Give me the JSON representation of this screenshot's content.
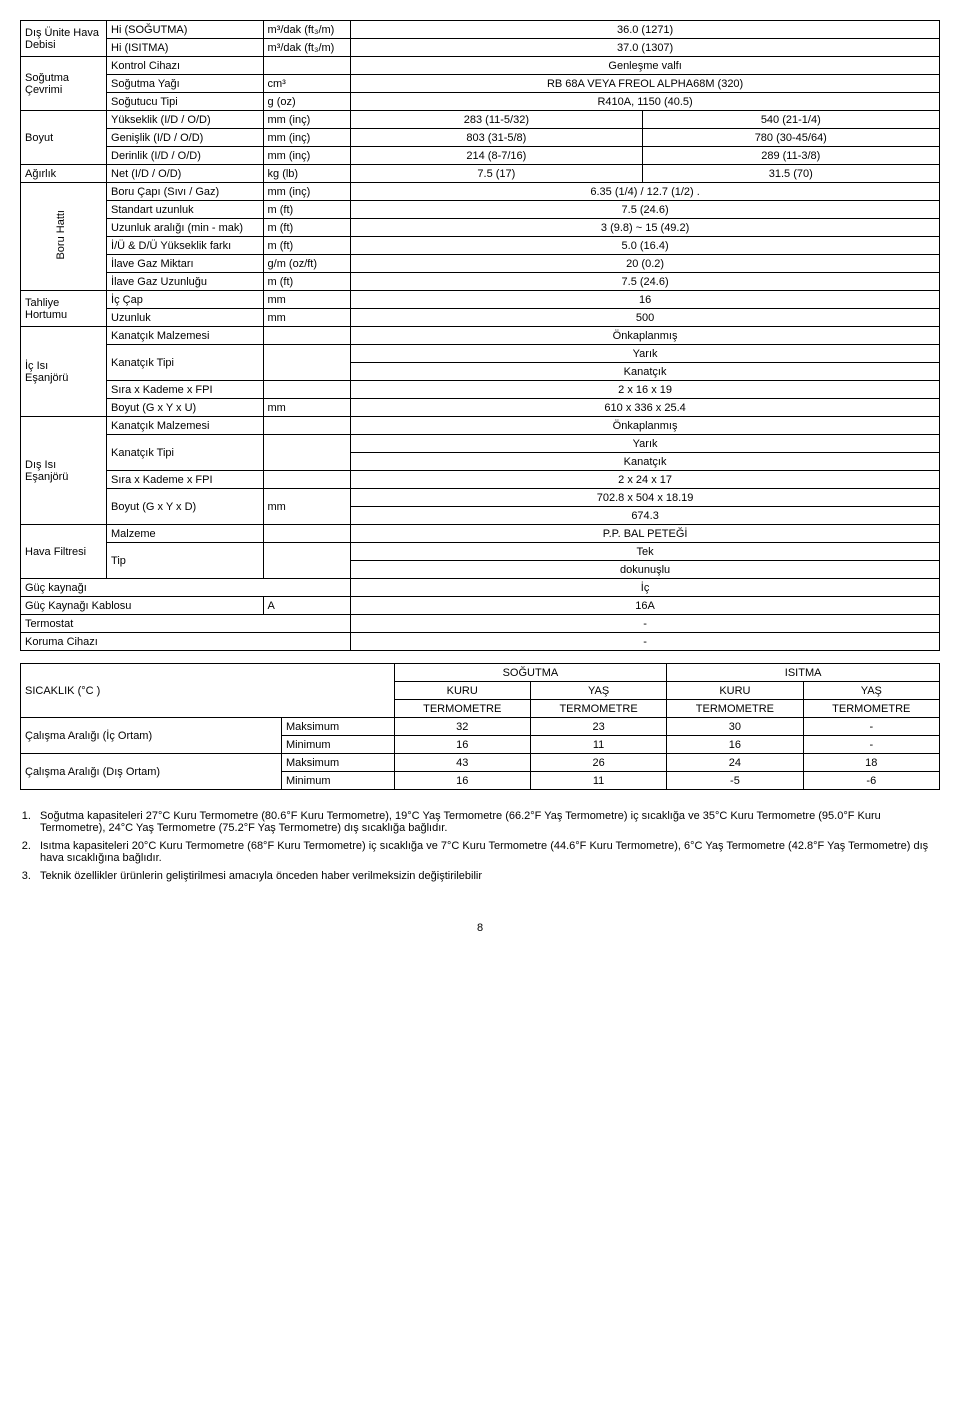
{
  "rows": [
    {
      "c1": "Dış Ünite Hava",
      "c2": "Hi (SOĞUTMA)",
      "c3": "m³/dak (ft₃/m)",
      "c45": "36.0 (1271)",
      "rs1": 2
    },
    {
      "c2": "Hi (ISITMA)",
      "c3": "m³/dak (ft₃/m)",
      "c45": "37.0 (1307)"
    },
    {
      "c1_pre": "Debisi\n",
      "c1": "Soğutma",
      "c2": "Kontrol Cihazı",
      "c3": "",
      "c45": "Genleşme valfı",
      "rs1": 3
    },
    {
      "c1_cont": "Çevrimi",
      "c2": "Soğutma Yağı",
      "c3": "cm³",
      "c45": "RB 68A VEYA FREOL ALPHA68M (320)"
    },
    {
      "c2": "Soğutucu Tipi",
      "c3": "g (oz)",
      "c45": "R410A, 1150 (40.5)"
    },
    {
      "c1": "Boyut",
      "c2": "Yükseklik (I/D / O/D)",
      "c3": "mm (inç)",
      "c4": "283 (11-5/32)",
      "c5": "540 (21-1/4)",
      "rs1": 3
    },
    {
      "c2": "Genişlik  (I/D / O/D)",
      "c3": "mm (inç)",
      "c4": "803 (31-5/8)",
      "c5": "780 (30-45/64)"
    },
    {
      "c2": "Derinlik (I/D / O/D)",
      "c3": "mm (inç)",
      "c4": "214 (8-7/16)",
      "c5": "289 (11-3/8)"
    },
    {
      "c1": "Ağırlık",
      "c2": "Net (I/D / O/D)",
      "c3": "kg (lb)",
      "c4": "7.5 (17)",
      "c5": "31.5 (70)"
    }
  ],
  "boru": {
    "label": "Boru Hattı",
    "rows": [
      {
        "c2": "Boru Çapı (Sıvı / Gaz)",
        "c3": "mm (inç)",
        "c45": "6.35 (1/4) / 12.7 (1/2) ."
      },
      {
        "c2": "Standart uzunluk",
        "c3": "m (ft)",
        "c45": "7.5 (24.6)"
      },
      {
        "c2": "Uzunluk aralığı (min - mak)",
        "c3": "m (ft)",
        "c45": "3 (9.8) ~ 15 (49.2)"
      },
      {
        "c2": "İ/Ü & D/Ü Yükseklik farkı",
        "c3": "m (ft)",
        "c45": "5.0 (16.4)"
      },
      {
        "c2": "İlave Gaz Miktarı",
        "c3": "g/m (oz/ft)",
        "c45": "20 (0.2)"
      },
      {
        "c2": "İlave Gaz Uzunluğu",
        "c3": "m (ft)",
        "c45": "7.5 (24.6)"
      }
    ]
  },
  "tahliye": {
    "label": "Tahliye\nHortumu",
    "rows": [
      {
        "c2": "İç Çap",
        "c3": "mm",
        "c45": "16"
      },
      {
        "c2": "Uzunluk",
        "c3": "mm",
        "c45": "500"
      }
    ]
  },
  "icisi": {
    "label": "İç Isı\nEşanjörü",
    "rows": [
      {
        "c2": "Kanatçık Malzemesi",
        "c3": "",
        "c45": "Önkaplanmış"
      },
      {
        "c2": "Kanatçık Tipi",
        "c3": "",
        "c45": "Yarık\nKanatçık",
        "h2": true
      },
      {
        "c2": "Sıra x Kademe x FPI",
        "c3": "",
        "c45": "2 x 16 x 19"
      },
      {
        "c2": "Boyut (G x Y x U)",
        "c3": "mm",
        "c45": "610 x 336 x 25.4"
      }
    ]
  },
  "disi": {
    "label": "Dış Isı\nEşanjörü",
    "rows": [
      {
        "c2": "Kanatçık Malzemesi",
        "c3": "",
        "c45": "Önkaplanmış"
      },
      {
        "c2": "Kanatçık Tipi",
        "c3": "",
        "c45": "Yarık\nKanatçık",
        "h2": true
      },
      {
        "c2": "Sıra x Kademe x FPI",
        "c3": "",
        "c45": "2 x 24 x 17"
      },
      {
        "c2": "Boyut (G x Y x D)",
        "c3": "mm",
        "c45": "702.8 x 504 x 18.19\n674.3",
        "h2": true
      }
    ]
  },
  "filtre": {
    "label": "Hava Filtresi",
    "rows": [
      {
        "c2": "Malzeme",
        "c3": "",
        "c45": "P.P. BAL PETEĞİ"
      },
      {
        "c2": "Tip",
        "c3": "",
        "c45": "Tek\ndokunuşlu",
        "h2": true
      }
    ]
  },
  "simple": [
    {
      "c1": "Güç kaynağı",
      "c45": "İç"
    },
    {
      "c1": "Güç Kaynağı Kablosu",
      "c3": "A",
      "c45": "16A"
    },
    {
      "c1": "Termostat",
      "c45": "-"
    },
    {
      "c1": "Koruma Cihazı",
      "c45": "-"
    }
  ],
  "temp": {
    "title": "SICAKLIK (°C )",
    "hcool": "SOĞUTMA",
    "hheat": "ISITMA",
    "dry": "KURU\nTERMOMETRE",
    "wet": "YAŞ\nTERMOMETRE",
    "in_lbl": "Çalışma Aralığı (İç Ortam)",
    "out_lbl": "Çalışma Aralığı (Dış Ortam)",
    "max": "Maksimum",
    "min": "Minimum",
    "in_max": [
      "32",
      "23",
      "30",
      "-"
    ],
    "in_min": [
      "16",
      "11",
      "16",
      "-"
    ],
    "out_max": [
      "43",
      "26",
      "24",
      "18"
    ],
    "out_min": [
      "16",
      "11",
      "-5",
      "-6"
    ]
  },
  "notes": [
    "Soğutma kapasiteleri 27°C Kuru Termometre (80.6°F Kuru Termometre), 19°C Yaş Termometre (66.2°F Yaş Termometre) iç sıcaklığa ve 35°C Kuru Termometre (95.0°F Kuru Termometre), 24°C Yaş Termometre (75.2°F Yaş Termometre) dış sıcaklığa bağlıdır.",
    "Isıtma kapasiteleri 20°C Kuru Termometre (68°F Kuru Termometre) iç sıcaklığa ve 7°C Kuru Termometre (44.6°F Kuru Termometre), 6°C Yaş Termometre (42.8°F Yaş Termometre) dış hava sıcaklığına bağlıdır.",
    "Teknik özellikler ürünlerin geliştirilmesi amacıyla önceden haber verilmeksizin değiştirilebilir"
  ],
  "pagenum": "8"
}
